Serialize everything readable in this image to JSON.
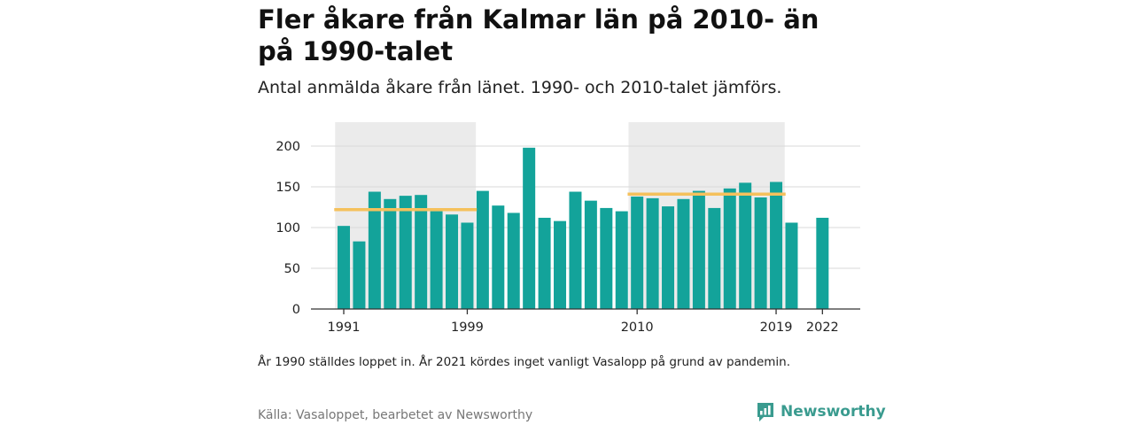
{
  "title": "Fler åkare från Kalmar län på 2010- än på 1990-talet",
  "subtitle": "Antal anmälda åkare från länet. 1990- och 2010-talet jämförs.",
  "note": "År 1990 ställdes loppet in. År 2021 kördes inget vanligt Vasalopp på grund av pandemin.",
  "source": "Källa: Vasaloppet, bearbetet av Newsworthy",
  "brand": {
    "name": "Newsworthy",
    "icon": "newsworthy-logo-icon"
  },
  "colors": {
    "bar": "#13a39a",
    "mean_line": "#f5c15c",
    "band": "#ebebeb",
    "grid": "#d9d9d9"
  },
  "chart_data": {
    "type": "bar",
    "x_tick_labels": [
      "1991",
      "1999",
      "2010",
      "2019",
      "2022"
    ],
    "y_ticks": [
      0,
      50,
      100,
      150,
      200
    ],
    "ylim": [
      0,
      220
    ],
    "grid": "horizontal",
    "xlabel": "",
    "ylabel": "",
    "categories": [
      1991,
      1992,
      1993,
      1994,
      1995,
      1996,
      1997,
      1998,
      1999,
      2000,
      2001,
      2002,
      2003,
      2004,
      2005,
      2006,
      2007,
      2008,
      2009,
      2010,
      2011,
      2012,
      2013,
      2014,
      2015,
      2016,
      2017,
      2018,
      2019,
      2020,
      2021,
      2022
    ],
    "values": [
      102,
      83,
      144,
      135,
      139,
      140,
      120,
      116,
      106,
      145,
      127,
      118,
      198,
      112,
      108,
      144,
      133,
      124,
      120,
      138,
      136,
      126,
      135,
      145,
      124,
      148,
      155,
      137,
      156,
      106,
      null,
      112
    ],
    "highlight_bands": [
      {
        "from": 1991,
        "to": 1999
      },
      {
        "from": 2010,
        "to": 2019
      }
    ],
    "mean_lines": [
      {
        "from": 1991,
        "to": 1999,
        "value": 122
      },
      {
        "from": 2010,
        "to": 2019,
        "value": 141
      }
    ]
  }
}
